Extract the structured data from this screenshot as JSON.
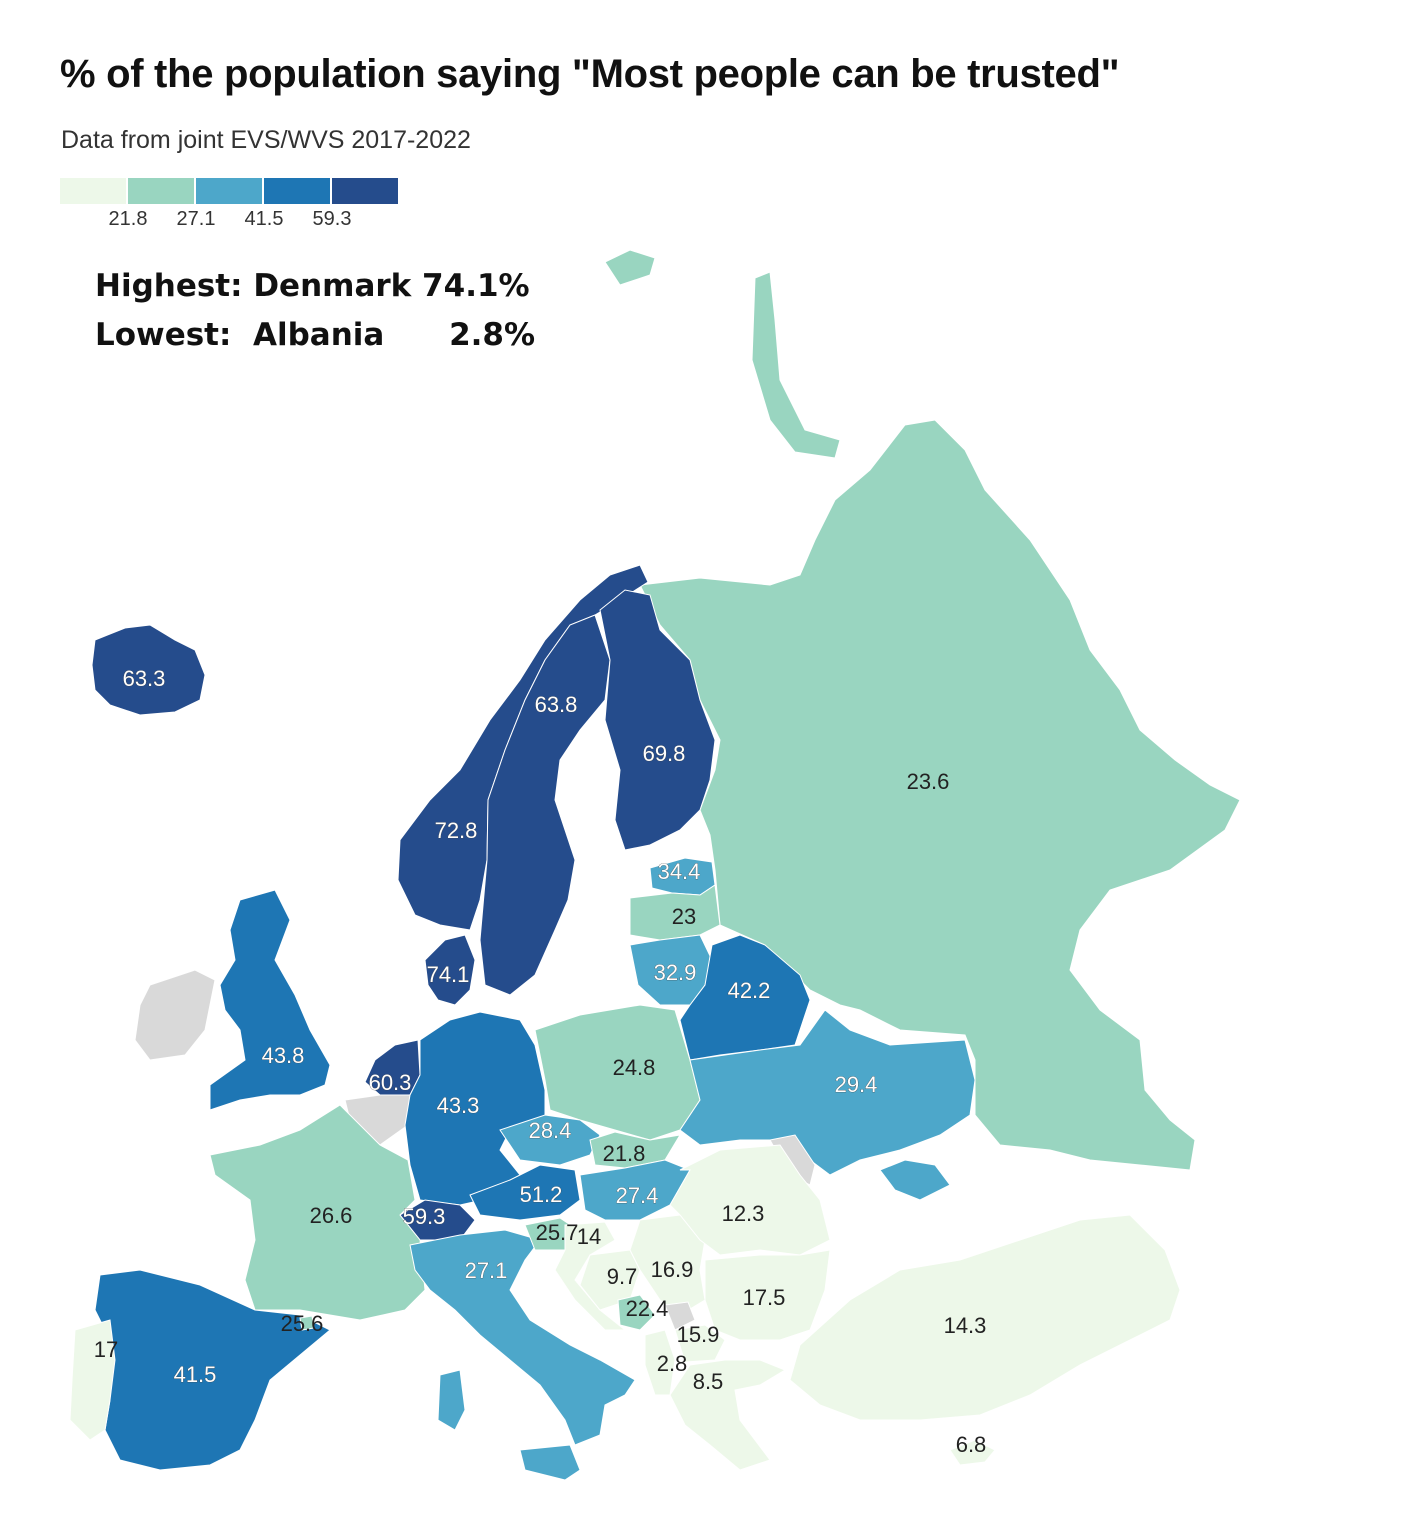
{
  "title": "% of the population saying \"Most people can be trusted\"",
  "subtitle": "Data from joint EVS/WVS 2017-2022",
  "legend": {
    "thresholds": [
      "21.8",
      "27.1",
      "41.5",
      "59.3"
    ],
    "colors": [
      "#edf8e9",
      "#99d5c0",
      "#4da7ca",
      "#1e76b4",
      "#254c8c"
    ]
  },
  "stats": {
    "highest": "Highest: Denmark 74.1%",
    "lowest": "Lowest:  Albania      2.8%"
  },
  "no_data_color": "#d9d9d9",
  "countries": [
    {
      "name": "Iceland",
      "value": 63.3
    },
    {
      "name": "Norway",
      "value": 72.8
    },
    {
      "name": "Sweden",
      "value": 63.8
    },
    {
      "name": "Finland",
      "value": 69.8
    },
    {
      "name": "Russia",
      "value": 23.6
    },
    {
      "name": "Estonia",
      "value": 34.4
    },
    {
      "name": "Latvia",
      "value": 23
    },
    {
      "name": "Lithuania",
      "value": 32.9
    },
    {
      "name": "Belarus",
      "value": 42.2
    },
    {
      "name": "Denmark",
      "value": 74.1
    },
    {
      "name": "United Kingdom",
      "value": 43.8
    },
    {
      "name": "Netherlands",
      "value": 60.3
    },
    {
      "name": "Germany",
      "value": 43.3
    },
    {
      "name": "Poland",
      "value": 24.8
    },
    {
      "name": "Ukraine",
      "value": 29.4
    },
    {
      "name": "Czechia",
      "value": 28.4
    },
    {
      "name": "Slovakia",
      "value": 21.8
    },
    {
      "name": "Austria",
      "value": 51.2
    },
    {
      "name": "Hungary",
      "value": 27.4
    },
    {
      "name": "Switzerland",
      "value": 59.3
    },
    {
      "name": "France",
      "value": 26.6
    },
    {
      "name": "Slovenia",
      "value": 25.7
    },
    {
      "name": "Croatia",
      "value": 14
    },
    {
      "name": "Italy",
      "value": 27.1
    },
    {
      "name": "Romania",
      "value": 12.3
    },
    {
      "name": "Bosnia and Herzegovina",
      "value": 9.7
    },
    {
      "name": "Serbia",
      "value": 16.9
    },
    {
      "name": "Bulgaria",
      "value": 17.5
    },
    {
      "name": "Montenegro",
      "value": 22.4
    },
    {
      "name": "North Macedonia",
      "value": 15.9
    },
    {
      "name": "Albania",
      "value": 2.8
    },
    {
      "name": "Greece",
      "value": 8.5
    },
    {
      "name": "Turkey",
      "value": 14.3
    },
    {
      "name": "Cyprus",
      "value": 6.8
    },
    {
      "name": "Spain",
      "value": 41.5
    },
    {
      "name": "Portugal",
      "value": 17
    },
    {
      "name": "Andorra",
      "value": 25.6
    }
  ]
}
